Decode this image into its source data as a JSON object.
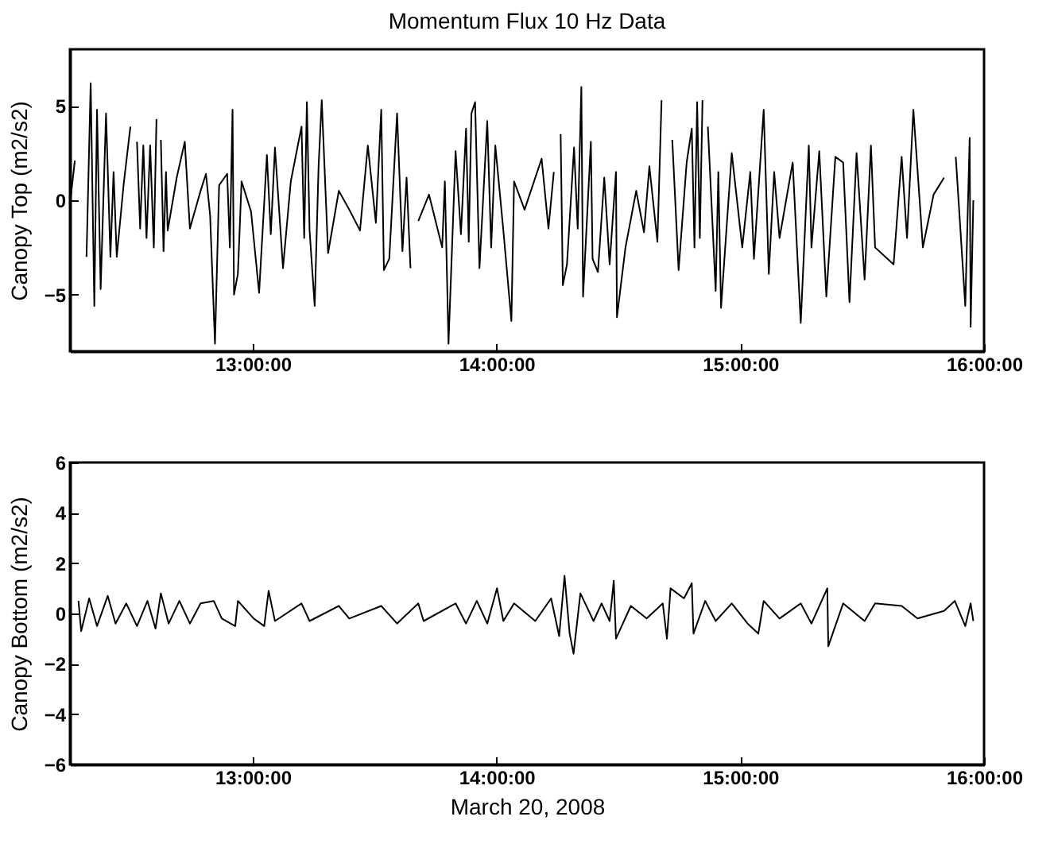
{
  "chart_data": [
    {
      "type": "line",
      "title": "Momentum Flux 10 Hz Data",
      "ylabel": "Canopy Top (m2/s2)",
      "color": "#000000",
      "xlim": [
        12.25,
        16
      ],
      "xticks": [
        {
          "value": 13,
          "label": "13:00:00"
        },
        {
          "value": 14,
          "label": "14:00:00"
        },
        {
          "value": 15,
          "label": "15:00:00"
        },
        {
          "value": 16,
          "label": "16:00:00"
        }
      ],
      "ylim": [
        -8,
        8
      ],
      "yticks": [
        -5,
        0,
        5
      ],
      "x": [
        12.252,
        12.27,
        12.278,
        12.296,
        12.318,
        12.335,
        12.35,
        12.361,
        12.376,
        12.398,
        12.416,
        12.429,
        12.442,
        12.47,
        12.498,
        12.507,
        12.525,
        12.538,
        12.551,
        12.564,
        12.579,
        12.594,
        12.605,
        12.61,
        12.623,
        12.634,
        12.644,
        12.651,
        12.688,
        12.721,
        12.742,
        12.786,
        12.808,
        12.825,
        12.845,
        12.862,
        12.895,
        12.906,
        12.917,
        12.923,
        12.939,
        12.954,
        12.993,
        13.026,
        13.058,
        13.074,
        13.091,
        13.124,
        13.156,
        13.2,
        13.211,
        13.222,
        13.233,
        13.254,
        13.27,
        13.283,
        13.309,
        13.353,
        13.396,
        13.44,
        13.472,
        13.505,
        13.527,
        13.538,
        13.56,
        13.592,
        13.614,
        13.631,
        13.647,
        13.662,
        13.679,
        13.723,
        13.777,
        13.788,
        13.803,
        13.832,
        13.854,
        13.875,
        13.886,
        13.897,
        13.912,
        13.93,
        13.962,
        13.978,
        13.995,
        14.028,
        14.061,
        14.072,
        14.115,
        14.185,
        14.213,
        14.235,
        14.246,
        14.263,
        14.272,
        14.289,
        14.318,
        14.333,
        14.348,
        14.355,
        14.387,
        14.394,
        14.416,
        14.442,
        14.464,
        14.49,
        14.494,
        14.529,
        14.573,
        14.605,
        14.627,
        14.66,
        14.677,
        14.682,
        14.703,
        14.721,
        14.747,
        14.78,
        14.801,
        14.812,
        14.823,
        14.834,
        14.845,
        14.852,
        14.867,
        14.899,
        14.91,
        14.921,
        14.965,
        15.008,
        15.041,
        15.056,
        15.096,
        15.117,
        15.139,
        15.161,
        15.215,
        15.248,
        15.281,
        15.292,
        15.324,
        15.353,
        15.39,
        15.422,
        15.448,
        15.477,
        15.51,
        15.536,
        15.553,
        15.629,
        15.662,
        15.684,
        15.71,
        15.749,
        15.793,
        15.836,
        15.869,
        15.884,
        15.923,
        15.941,
        15.945,
        15.956
      ],
      "values": [
        0,
        2.1,
        null,
        null,
        -3,
        6.2,
        -5.6,
        4.8,
        -4.7,
        4.6,
        -3,
        1.5,
        -3,
        0.8,
        3.9,
        null,
        3.1,
        -1.5,
        2.9,
        -2,
        2.9,
        -2.5,
        4.3,
        null,
        3.2,
        -2.7,
        1.5,
        -1.6,
        1.2,
        3.1,
        -1.5,
        0.5,
        1.4,
        -0.8,
        -7.6,
        0.8,
        1.4,
        -2.5,
        4.8,
        -5,
        -3.9,
        1,
        -0.6,
        -4.9,
        2.4,
        -1.8,
        2.8,
        -3.6,
        1,
        3.9,
        -2,
        5.2,
        -1.6,
        -5.6,
        1.8,
        5.3,
        -2.8,
        0.5,
        -0.5,
        -1.6,
        2.9,
        -1.2,
        4.8,
        -3.7,
        -3.1,
        4.6,
        -2.7,
        1.2,
        -3.6,
        null,
        -1.1,
        0.3,
        -2.5,
        1,
        -7.6,
        2.6,
        -1.8,
        3.8,
        -2.2,
        4.6,
        5.2,
        -3.6,
        4.2,
        -2.5,
        2.9,
        -1.6,
        -6.4,
        1,
        -0.5,
        2.2,
        -1.5,
        1.5,
        null,
        3.5,
        -4.5,
        -3.4,
        2.8,
        -1.5,
        6,
        -5.1,
        3.1,
        -3.1,
        -3.8,
        1.2,
        -3.4,
        1.5,
        -6.2,
        -2.5,
        0.5,
        -1.7,
        1.8,
        -2.2,
        5.3,
        null,
        null,
        3.2,
        -3.7,
        2,
        3.8,
        -2.5,
        5.2,
        -2,
        5.3,
        null,
        3.9,
        -4.8,
        1.5,
        -5.7,
        2.5,
        -2.5,
        1.5,
        -3.1,
        4.8,
        -3.9,
        1.5,
        -2,
        2,
        -6.5,
        2.9,
        -2.5,
        2.6,
        -5.1,
        2.3,
        2,
        -5.4,
        2.5,
        -4.2,
        2.9,
        -2.5,
        -3.4,
        2.3,
        -2,
        4.8,
        -2.5,
        0.3,
        1.2,
        null,
        2.3,
        -5.6,
        3.3,
        -6.7,
        0
      ]
    },
    {
      "type": "line",
      "xlabel": "March 20, 2008",
      "ylabel": "Canopy Bottom (m2/s2)",
      "color": "#000000",
      "xlim": [
        12.25,
        16
      ],
      "xticks": [
        {
          "value": 13,
          "label": "13:00:00"
        },
        {
          "value": 14,
          "label": "14:00:00"
        },
        {
          "value": 15,
          "label": "15:00:00"
        },
        {
          "value": 16,
          "label": "16:00:00"
        }
      ],
      "ylim": [
        -6,
        6
      ],
      "yticks": [
        -6,
        -4,
        -2,
        0,
        2,
        4,
        6
      ],
      "x": [
        12.285,
        12.296,
        12.329,
        12.361,
        12.405,
        12.437,
        12.481,
        12.525,
        12.568,
        12.601,
        12.623,
        12.655,
        12.699,
        12.742,
        12.786,
        12.84,
        12.873,
        12.928,
        12.939,
        13.004,
        13.047,
        13.065,
        13.091,
        13.2,
        13.233,
        13.353,
        13.396,
        13.527,
        13.592,
        13.679,
        13.701,
        13.832,
        13.875,
        13.919,
        13.962,
        14.002,
        14.028,
        14.072,
        14.159,
        14.224,
        14.257,
        14.279,
        14.3,
        14.316,
        14.344,
        14.398,
        14.431,
        14.464,
        14.481,
        14.49,
        14.551,
        14.616,
        14.682,
        14.699,
        14.714,
        14.769,
        14.801,
        14.808,
        14.856,
        14.899,
        14.965,
        15.03,
        15.074,
        15.096,
        15.161,
        15.248,
        15.292,
        15.357,
        15.361,
        15.422,
        15.51,
        15.553,
        15.662,
        15.727,
        15.836,
        15.88,
        15.923,
        15.945,
        15.956
      ],
      "values": [
        0.5,
        -0.7,
        0.6,
        -0.5,
        0.7,
        -0.4,
        0.4,
        -0.5,
        0.5,
        -0.6,
        0.8,
        -0.4,
        0.5,
        -0.4,
        0.4,
        0.5,
        -0.2,
        -0.5,
        0.5,
        -0.2,
        -0.5,
        0.9,
        -0.3,
        0.4,
        -0.3,
        0.3,
        -0.2,
        0.3,
        -0.4,
        0.4,
        -0.3,
        0.4,
        -0.4,
        0.5,
        -0.4,
        1,
        -0.3,
        0.4,
        -0.3,
        0.6,
        -0.9,
        1.5,
        -0.8,
        -1.6,
        0.8,
        -0.3,
        0.4,
        -0.3,
        1.3,
        -1,
        0.3,
        -0.2,
        0.4,
        -1,
        1,
        0.6,
        1.2,
        -0.8,
        0.5,
        -0.3,
        0.4,
        -0.4,
        -0.8,
        0.5,
        -0.2,
        0.4,
        -0.4,
        1,
        -1.3,
        0.4,
        -0.3,
        0.4,
        0.3,
        -0.2,
        0.1,
        0.5,
        -0.5,
        0.4,
        -0.3
      ]
    }
  ]
}
